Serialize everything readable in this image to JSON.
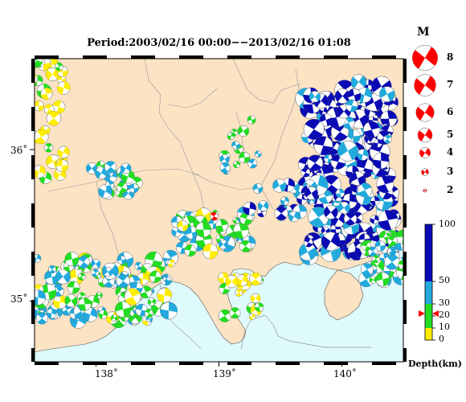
{
  "title": "Period:2003/02/16 00:00−−2013/02/16 01:08",
  "axes": {
    "lon_ticks": [
      {
        "value": 138,
        "label": "138˚"
      },
      {
        "value": 139,
        "label": "139˚"
      },
      {
        "value": 140,
        "label": "140˚"
      }
    ],
    "lat_ticks": [
      {
        "value": 36,
        "label": "36˚"
      },
      {
        "value": 35,
        "label": "35˚"
      }
    ],
    "lon_range": [
      137.5,
      140.5
    ],
    "lat_range": [
      34.6,
      36.6
    ]
  },
  "colors": {
    "land": "#fbe3c4",
    "sea": "#dffafc",
    "shallow": "#ffee00",
    "mid": "#22dd22",
    "deep_mid": "#22aadd",
    "deep": "#0a0ab4",
    "magnitude": "#ff0000"
  },
  "magnitude_legend": {
    "title": "M",
    "items": [
      {
        "label": "8",
        "m": 8
      },
      {
        "label": "7",
        "m": 7
      },
      {
        "label": "6",
        "m": 6
      },
      {
        "label": "5",
        "m": 5
      },
      {
        "label": "4",
        "m": 4
      },
      {
        "label": "3",
        "m": 3
      },
      {
        "label": "2",
        "m": 2
      }
    ]
  },
  "depth_scale": {
    "title": "Depth(km)",
    "ticks": [
      {
        "label": "100",
        "value": 100
      },
      {
        "label": "50",
        "value": 50
      },
      {
        "label": "30",
        "value": 30
      },
      {
        "label": "20",
        "value": 20
      },
      {
        "label": "10",
        "value": 10
      },
      {
        "label": "0",
        "value": 0
      }
    ],
    "marker_depth": 22
  },
  "marked_event": {
    "lon": 138.96,
    "lat": 35.56
  }
}
